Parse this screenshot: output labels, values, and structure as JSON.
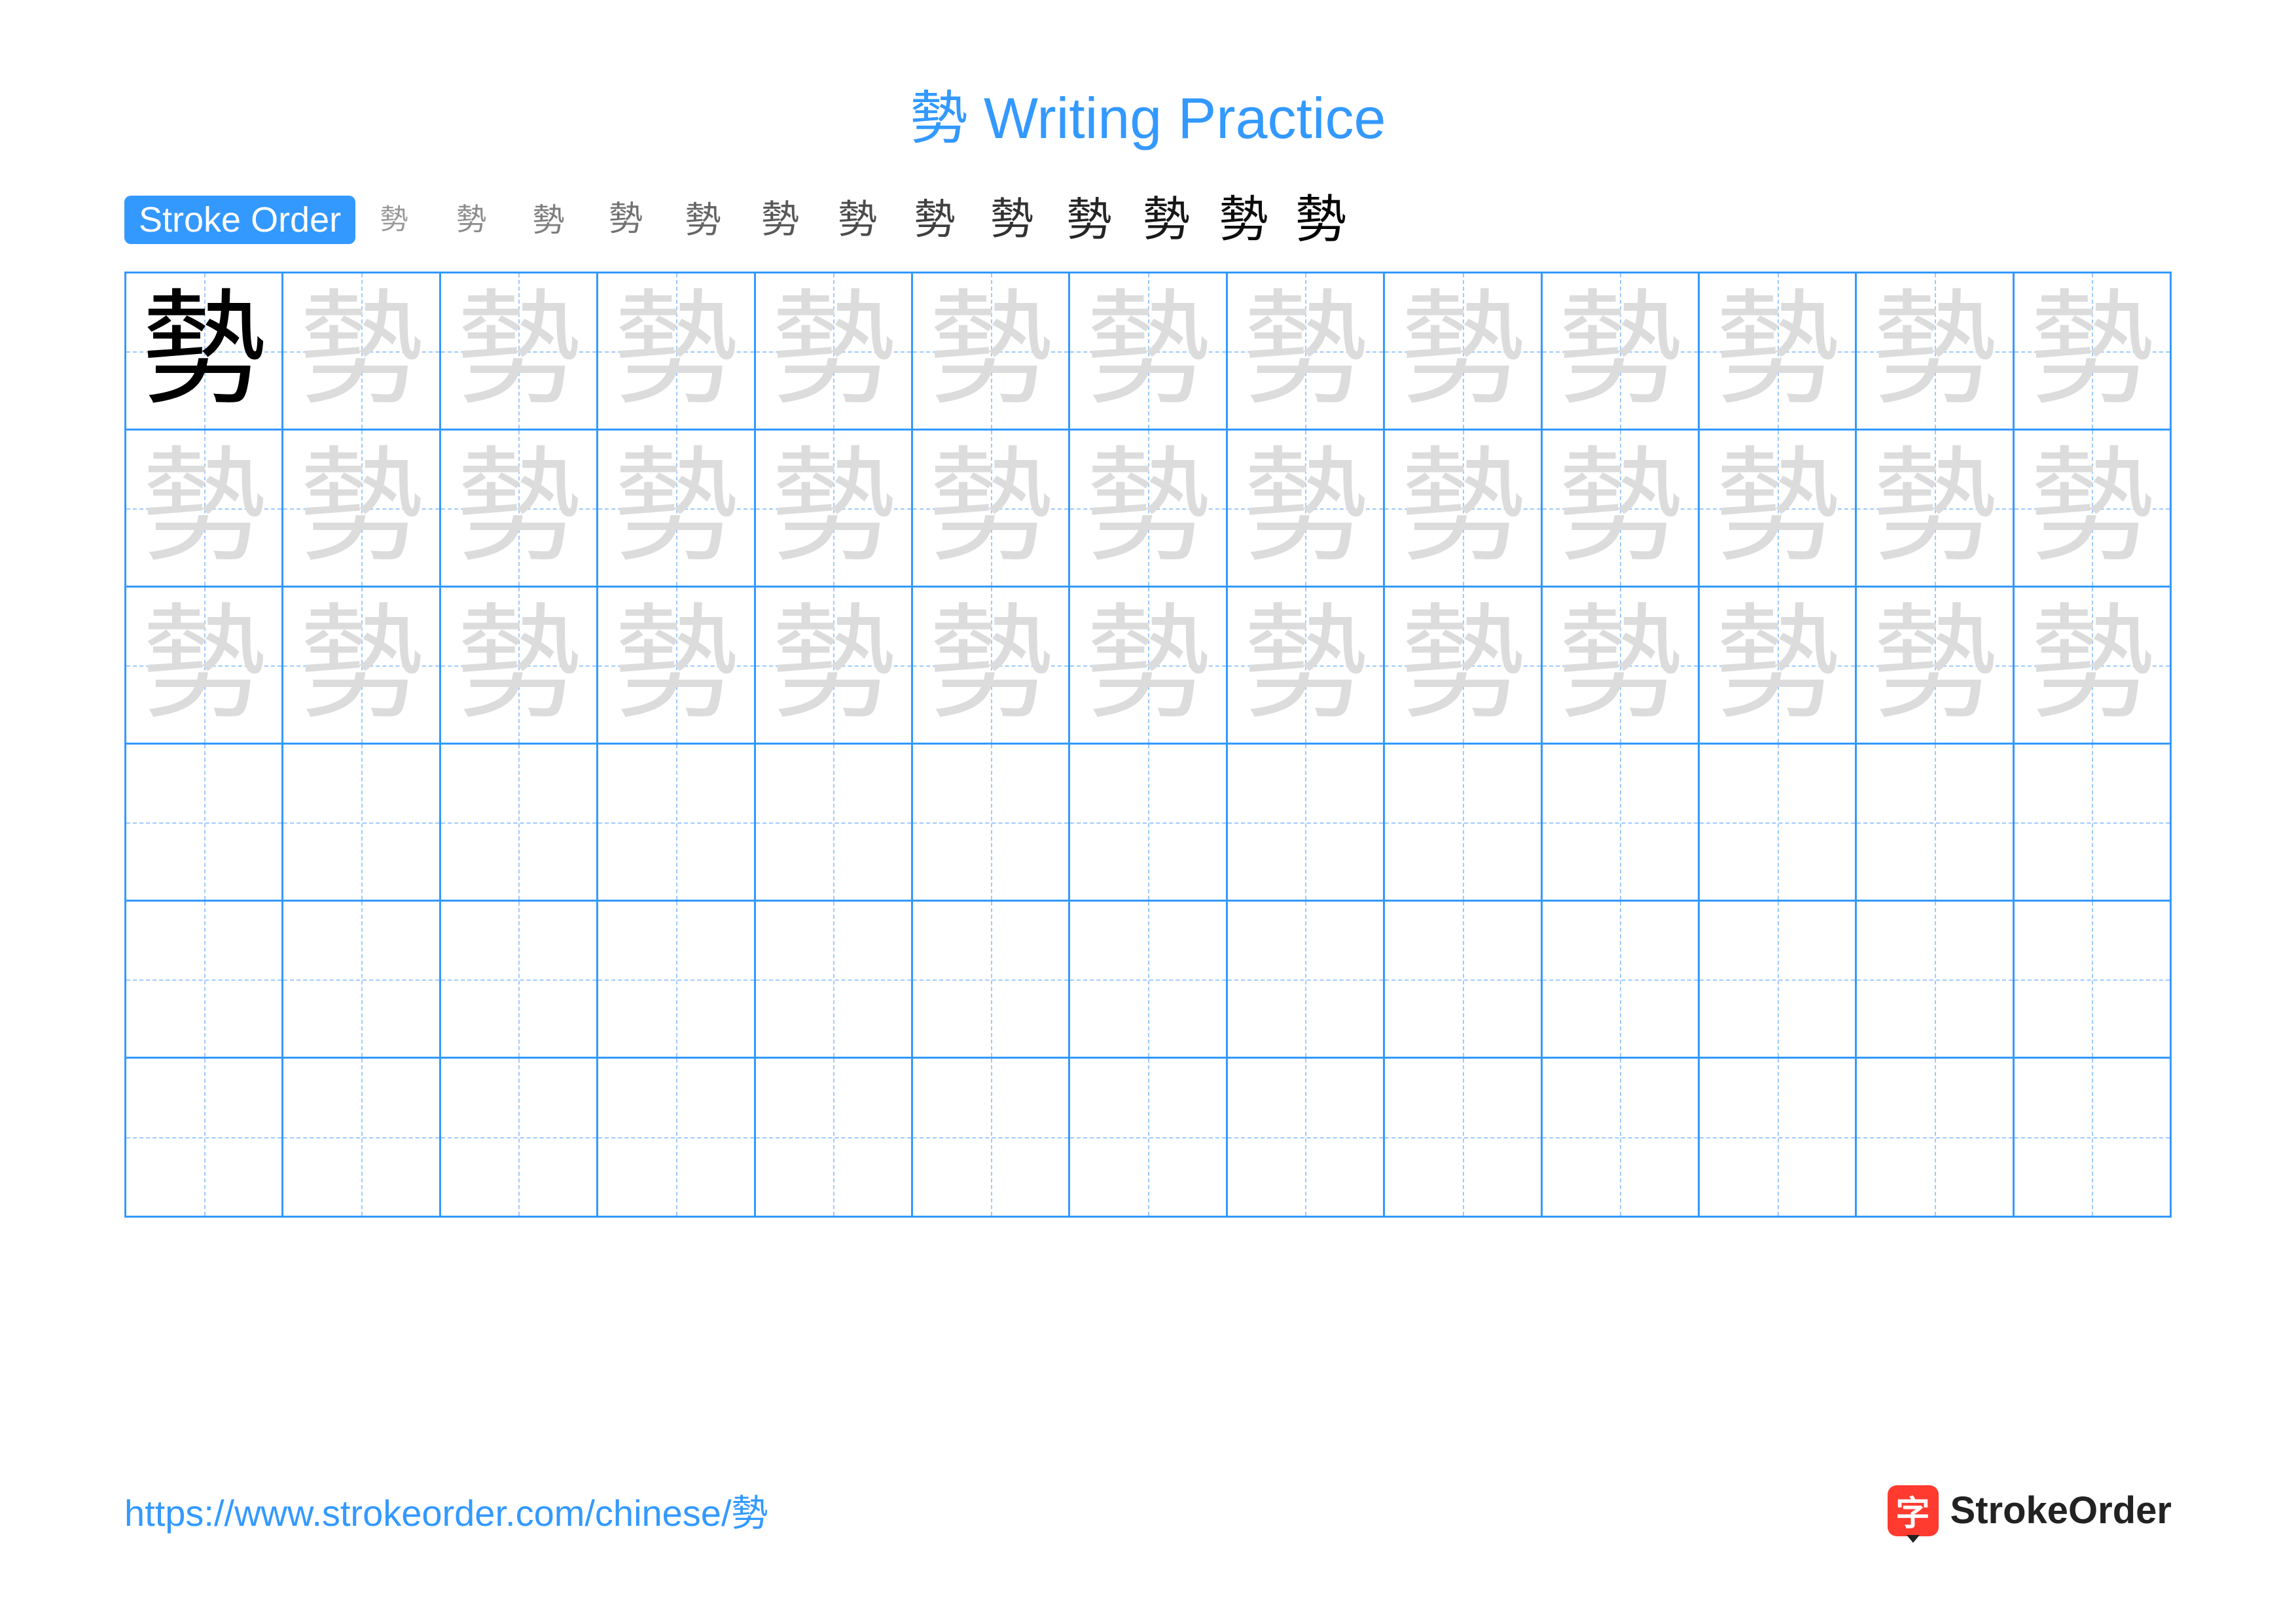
{
  "title": {
    "character": "勢",
    "rest": " Writing Practice"
  },
  "stroke_label": "Stroke Order",
  "character": "勢",
  "stroke_count": 13,
  "grid": {
    "rows": 6,
    "cols": 13,
    "trace_rows": 3,
    "solid_cells": [
      [
        0,
        0
      ]
    ]
  },
  "colors": {
    "accent": "#3399ff",
    "guide": "#9ecaff",
    "trace": "#dcdcdc",
    "text": "#000000",
    "logo_bg": "#ff3b30"
  },
  "footer": {
    "url": "https://www.strokeorder.com/chinese/勢",
    "logo_char": "字",
    "logo_text": "StrokeOrder"
  }
}
